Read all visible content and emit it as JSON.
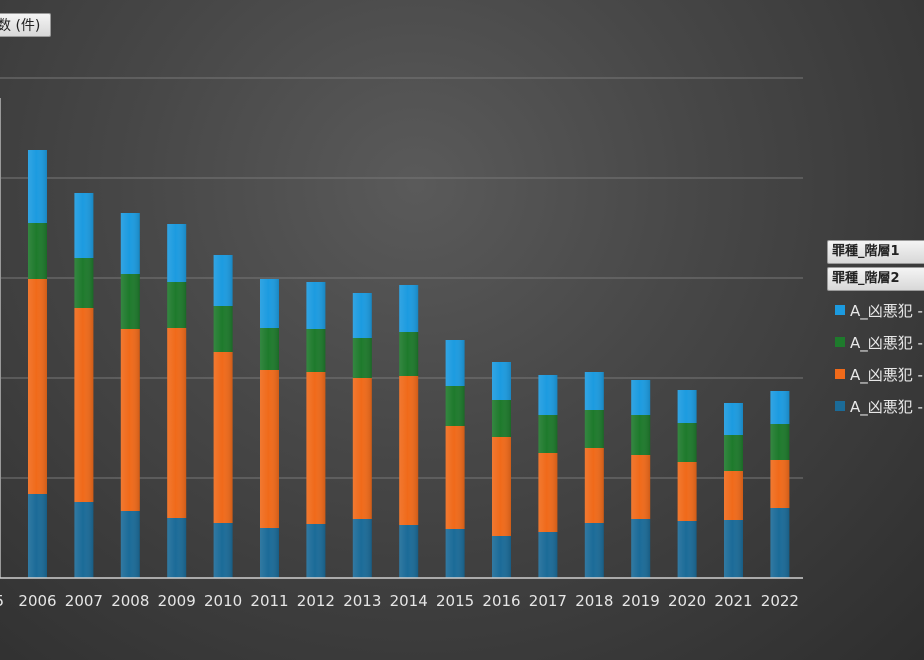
{
  "y_axis_field_label": "数 (件)",
  "legend": {
    "headers": [
      "罪種_階層1",
      "罪種_階層2"
    ],
    "items": [
      {
        "label": "A_凶悪犯 -",
        "color": "#1c9be0"
      },
      {
        "label": "A_凶悪犯 -",
        "color": "#1e7a2c"
      },
      {
        "label": "A_凶悪犯 -",
        "color": "#f06a1a"
      },
      {
        "label": "A_凶悪犯 -",
        "color": "#1b6b98"
      }
    ]
  },
  "chart_data": {
    "type": "bar",
    "stacked": true,
    "x_tick_partial_left": "5",
    "categories": [
      "2006",
      "2007",
      "2008",
      "2009",
      "2010",
      "2011",
      "2012",
      "2013",
      "2014",
      "2015",
      "2016",
      "2017",
      "2018",
      "2019",
      "2020",
      "2021",
      "2022"
    ],
    "series": [
      {
        "color": "#1b6b98",
        "values": [
          84,
          76,
          67,
          60,
          55,
          50,
          54,
          59,
          53,
          49,
          42,
          46,
          55,
          59,
          57,
          58,
          70
        ]
      },
      {
        "color": "#f06a1a",
        "values": [
          215,
          194,
          182,
          190,
          171,
          158,
          152,
          141,
          149,
          103,
          99,
          79,
          75,
          64,
          59,
          49,
          48
        ]
      },
      {
        "color": "#1e7a2c",
        "values": [
          56,
          50,
          55,
          46,
          46,
          42,
          43,
          40,
          44,
          40,
          37,
          38,
          38,
          40,
          39,
          36,
          36
        ]
      },
      {
        "color": "#1c9be0",
        "values": [
          73,
          65,
          61,
          58,
          51,
          49,
          47,
          45,
          47,
          46,
          38,
          40,
          38,
          35,
          33,
          32,
          33
        ]
      }
    ],
    "ylim": [
      0,
      510
    ],
    "grid": true,
    "legend_position": "right"
  }
}
